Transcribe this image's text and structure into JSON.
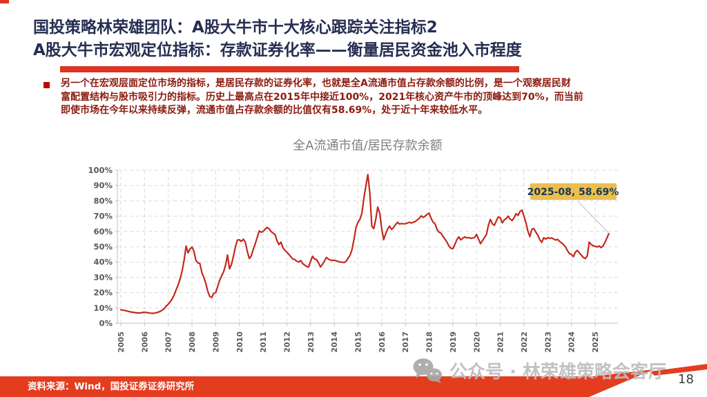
{
  "slide": {
    "title_line1": "国投策略林荣雄团队：A股大牛市十大核心跟踪关注指标2",
    "title_line2": "A股大牛市宏观定位指标：存款证券化率——衡量居民资金池入市程度",
    "body_lines": [
      "另一个在宏观层面定位市场的指标，是居民存款的证券化率，也就是全A流通市值占存款余额的比例，是一个观察居民财",
      "富配置结构与股市吸引力的指标。历史上最高点在2015年中接近100%，2021年核心资产牛市的顶峰达到70%，而当前",
      "即使市场在今年以来持续反弹，流通市值占存款余额的比值仅有58.69%，处于近十年来较低水平。"
    ],
    "source_text": "资料来源：Wind，国投证券证券研究所",
    "watermark": "公众号 · 林荣雄策略会客厅",
    "page_number": "18"
  },
  "colors": {
    "title_navy": "#262e52",
    "accent_red": "#de3420",
    "body_red": "#8c1a0f",
    "bullet_red": "#c00000",
    "footer_band_red": "#e43c1f",
    "line_red": "#c3281b",
    "annotation_gold": "#ecbe4b",
    "annotation_text": "#17375e",
    "grid_gray": "#d9d9d9",
    "axis_gray": "#bfbfbf",
    "tick_label_gray": "#595959",
    "watermark_gray": "#bdbdbd"
  },
  "chart_data": {
    "type": "line",
    "title": "全A流通市值/居民存款余额",
    "xlabel": "",
    "ylabel": "",
    "ylim": [
      0,
      100
    ],
    "grid": "dashed",
    "legend": "none",
    "x_start": "2005-01",
    "x_interval": "monthly",
    "x_tick_labels": [
      "2005",
      "2006",
      "2007",
      "2008",
      "2009",
      "2010",
      "2011",
      "2012",
      "2013",
      "2014",
      "2015",
      "2016",
      "2017",
      "2018",
      "2019",
      "2020",
      "2021",
      "2022",
      "2023",
      "2024",
      "2025"
    ],
    "y_tick_labels": [
      "0%",
      "10%",
      "20%",
      "30%",
      "40%",
      "50%",
      "60%",
      "70%",
      "80%",
      "90%",
      "100%"
    ],
    "annotation": {
      "label": "2025-08, 58.69%",
      "x": "2025-08",
      "y": 58.69
    },
    "series": [
      {
        "name": "全A流通市值/居民存款余额",
        "color": "#c3281b",
        "values": [
          8.8,
          8.6,
          8.4,
          8.0,
          7.7,
          7.4,
          7.2,
          7.0,
          6.8,
          6.7,
          6.8,
          7.0,
          7.2,
          7.0,
          6.8,
          6.6,
          6.5,
          6.6,
          6.9,
          7.3,
          7.8,
          8.6,
          9.6,
          11.2,
          12.5,
          14.0,
          16.0,
          18.5,
          22.0,
          25.0,
          29.0,
          34.0,
          41.0,
          50.5,
          46.0,
          48.5,
          49.8,
          47.0,
          41.0,
          39.5,
          39.0,
          33.0,
          30.0,
          26.0,
          21.0,
          17.5,
          16.8,
          19.5,
          20.0,
          24.0,
          28.0,
          31.0,
          33.5,
          38.0,
          44.6,
          35.6,
          38.5,
          44.0,
          50.0,
          54.4,
          54.5,
          53.5,
          54.9,
          53.0,
          47.0,
          42.3,
          44.0,
          48.3,
          52.0,
          56.0,
          60.3,
          59.5,
          60.0,
          61.5,
          62.6,
          61.8,
          60.0,
          58.9,
          58.1,
          54.0,
          51.4,
          53.0,
          49.5,
          47.6,
          46.5,
          45.0,
          43.5,
          42.0,
          41.6,
          40.5,
          40.0,
          41.0,
          39.0,
          38.0,
          37.1,
          36.7,
          40.5,
          43.8,
          42.0,
          41.6,
          39.5,
          36.8,
          38.5,
          40.5,
          43.0,
          42.0,
          41.3,
          41.0,
          41.2,
          40.8,
          40.3,
          40.0,
          39.9,
          39.7,
          40.5,
          42.5,
          44.5,
          48.3,
          55.0,
          62.6,
          66.0,
          68.0,
          72.0,
          82.0,
          90.0,
          97.2,
          85.0,
          63.5,
          61.8,
          68.0,
          76.0,
          72.0,
          62.0,
          54.6,
          58.5,
          61.5,
          63.5,
          61.3,
          62.5,
          64.5,
          66.0,
          64.8,
          65.2,
          65.0,
          65.0,
          65.5,
          66.0,
          65.5,
          66.1,
          66.5,
          67.6,
          68.5,
          70.2,
          69.2,
          70.0,
          71.2,
          72.0,
          68.5,
          66.1,
          65.0,
          61.3,
          59.5,
          58.9,
          56.8,
          55.0,
          53.0,
          50.5,
          49.0,
          48.7,
          51.5,
          54.5,
          56.5,
          54.5,
          55.5,
          56.5,
          55.8,
          56.0,
          55.5,
          55.7,
          56.0,
          58.0,
          55.0,
          52.0,
          54.0,
          56.0,
          58.0,
          64.0,
          67.9,
          65.0,
          64.0,
          67.0,
          69.4,
          69.0,
          65.6,
          67.5,
          68.5,
          70.0,
          68.0,
          67.1,
          69.0,
          71.6,
          70.5,
          73.1,
          73.9,
          70.0,
          65.6,
          60.0,
          56.6,
          61.5,
          61.9,
          59.5,
          57.5,
          54.5,
          52.9,
          55.9,
          55.0,
          56.0,
          55.5,
          55.8,
          55.0,
          54.4,
          54.8,
          53.5,
          52.5,
          51.4,
          49.8,
          47.5,
          45.5,
          45.0,
          43.5,
          46.5,
          47.6,
          46.0,
          44.5,
          43.0,
          42.3,
          44.0,
          53.0,
          51.5,
          50.6,
          50.3,
          49.8,
          50.5,
          49.4,
          50.6,
          52.9,
          55.9,
          58.69
        ]
      }
    ]
  }
}
